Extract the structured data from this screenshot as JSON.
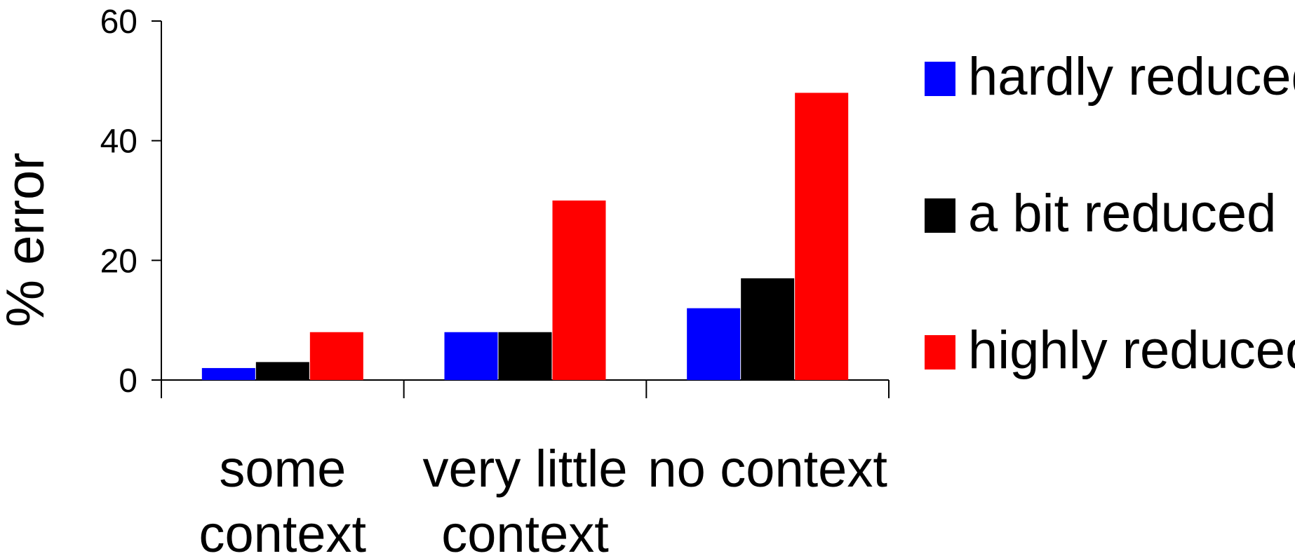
{
  "chart_data": {
    "type": "bar",
    "ylabel": "% error",
    "xlabel": "",
    "ylim": [
      0,
      60
    ],
    "yticks": [
      0,
      20,
      40,
      60
    ],
    "grid": false,
    "legend_position": "right",
    "categories": [
      [
        "some",
        "context"
      ],
      [
        "very little",
        "context"
      ],
      [
        "no context"
      ]
    ],
    "series": [
      {
        "name": "hardly reduced",
        "color": "#0000ff",
        "values": [
          2,
          8,
          12
        ]
      },
      {
        "name": "a bit reduced",
        "color": "#000000",
        "values": [
          3,
          8,
          17
        ]
      },
      {
        "name": "highly reduced",
        "color": "#ff0000",
        "values": [
          8,
          30,
          48
        ]
      }
    ]
  }
}
